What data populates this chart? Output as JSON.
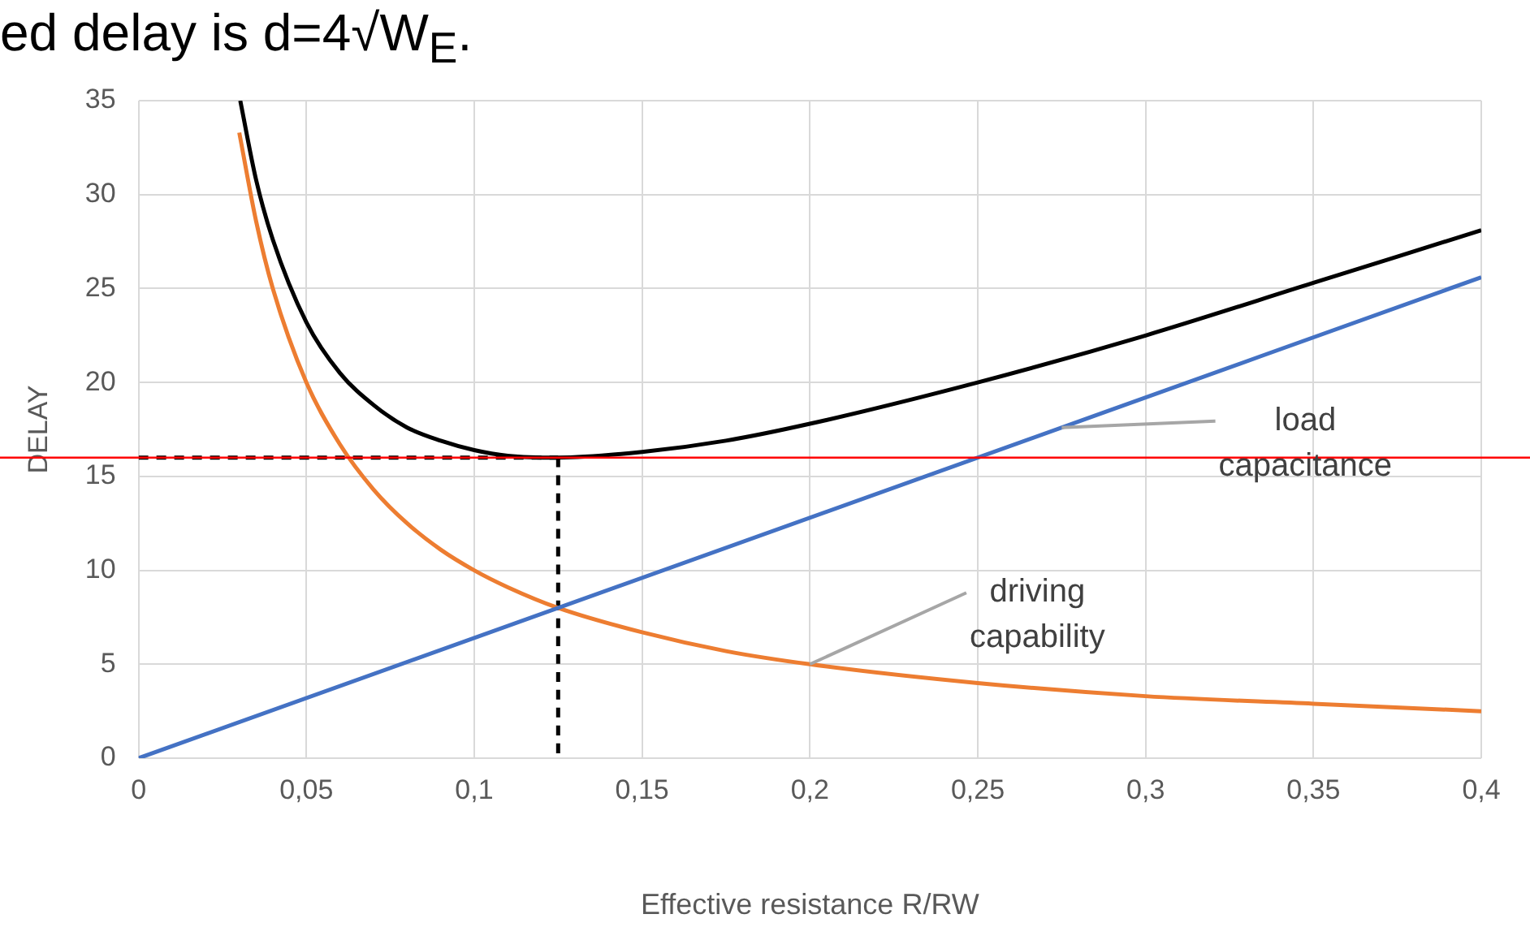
{
  "chart_data": {
    "type": "line",
    "title": "ed delay is d=4√W$_{E}$.",
    "xlabel": "Effective resistance R/RW",
    "ylabel": "DELAY",
    "xlim": [
      0,
      0.4
    ],
    "xticks": [
      0,
      {
        "value": 0.05,
        "label": "0,05"
      },
      {
        "value": 0.1,
        "label": "0,1"
      },
      {
        "value": 0.15,
        "label": "0,15"
      },
      {
        "value": 0.2,
        "label": "0,2"
      },
      {
        "value": 0.25,
        "label": "0,25"
      },
      {
        "value": 0.3,
        "label": "0,3"
      },
      {
        "value": 0.35,
        "label": "0,35"
      },
      {
        "value": 0.4,
        "label": "0,4"
      }
    ],
    "ylim": [
      0,
      35
    ],
    "yticks": [
      0,
      5,
      10,
      15,
      20,
      25,
      30,
      35
    ],
    "grid": true,
    "legend": false,
    "marker": "none",
    "line_style": "solid",
    "series": [
      {
        "color": "#4472c4",
        "x": [
          0,
          0.4
        ],
        "values": [
          0,
          25.6
        ]
      },
      {
        "color": "#ed7d31",
        "x": [
          0.03,
          0.035,
          0.04,
          0.05,
          0.06,
          0.07,
          0.08,
          0.09,
          0.1,
          0.11,
          0.125,
          0.15,
          0.175,
          0.2,
          0.25,
          0.3,
          0.35,
          0.4
        ],
        "values": [
          33.3,
          28.6,
          25,
          20,
          16.7,
          14.3,
          12.5,
          11.1,
          10,
          9.1,
          8,
          6.7,
          5.7,
          5,
          4,
          3.3,
          2.9,
          2.5
        ]
      },
      {
        "color": "#000000",
        "x": [
          0.0303,
          0.035,
          0.04,
          0.05,
          0.06,
          0.07,
          0.08,
          0.09,
          0.1,
          0.11,
          0.125,
          0.15,
          0.175,
          0.2,
          0.25,
          0.3,
          0.35,
          0.4
        ],
        "values": [
          35,
          30.8,
          27.6,
          23.2,
          20.5,
          18.8,
          17.6,
          16.9,
          16.4,
          16.1,
          16,
          16.3,
          16.9,
          17.8,
          20,
          22.5,
          25.3,
          28.1
        ]
      },
      {
        "color": "#000000",
        "line_style": "dashed",
        "x": [
          0,
          0.125
        ],
        "values": [
          16,
          16
        ]
      },
      {
        "color": "#000000",
        "line_style": "dashed",
        "x": [
          0.125,
          0.125
        ],
        "values": [
          16,
          0
        ]
      }
    ],
    "ref_lines": [
      {
        "axis": "y",
        "value": 16,
        "color": "#ff0000"
      }
    ],
    "annotations": [
      {
        "text": "load capacitance",
        "x": 0.275,
        "y": 17.6
      },
      {
        "text": "driving capability",
        "x": 0.2,
        "y": 5
      }
    ]
  }
}
